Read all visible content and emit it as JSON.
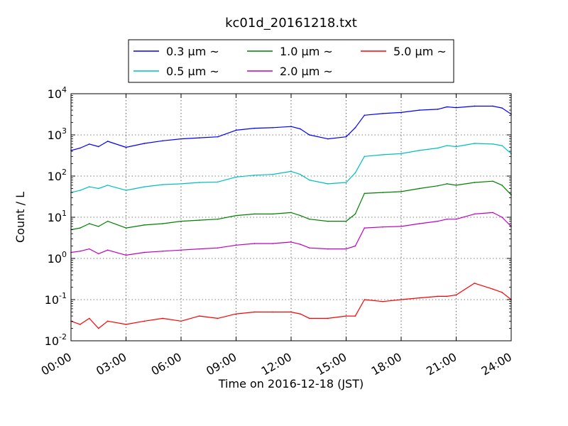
{
  "chart_data": {
    "type": "line",
    "title": "kc01d_20161218.txt",
    "xlabel": "Time on 2016-12-18 (JST)",
    "ylabel": "Count / L",
    "yscale": "log",
    "ylim": [
      0.01,
      10000
    ],
    "xlim": [
      "00:00",
      "24:00"
    ],
    "x_ticks": [
      "00:00",
      "03:00",
      "06:00",
      "09:00",
      "12:00",
      "15:00",
      "18:00",
      "21:00",
      "24:00"
    ],
    "y_ticks": [
      {
        "base": "10",
        "exp": "-2"
      },
      {
        "base": "10",
        "exp": "-1"
      },
      {
        "base": "10",
        "exp": "0"
      },
      {
        "base": "10",
        "exp": "1"
      },
      {
        "base": "10",
        "exp": "2"
      },
      {
        "base": "10",
        "exp": "3"
      },
      {
        "base": "10",
        "exp": "4"
      }
    ],
    "grid": true,
    "legend_position": "top-center",
    "x_hours": [
      0.0,
      0.5,
      1.0,
      1.5,
      2.0,
      3.0,
      4.0,
      5.0,
      6.0,
      7.0,
      8.0,
      9.0,
      10.0,
      11.0,
      12.0,
      12.5,
      13.0,
      14.0,
      15.0,
      15.5,
      16.0,
      17.0,
      18.0,
      19.0,
      20.0,
      20.5,
      21.0,
      22.0,
      23.0,
      23.5,
      24.0
    ],
    "series": [
      {
        "name": "0.3 μm ~",
        "color": "#0000ff",
        "values": [
          420,
          480,
          600,
          520,
          700,
          500,
          620,
          720,
          800,
          850,
          900,
          1300,
          1450,
          1500,
          1600,
          1400,
          1000,
          800,
          900,
          1500,
          3000,
          3300,
          3500,
          4000,
          4200,
          4800,
          4600,
          5000,
          5000,
          4500,
          3200
        ]
      },
      {
        "name": "0.5 μm ~",
        "color": "#00bfbf",
        "values": [
          40,
          45,
          55,
          50,
          60,
          45,
          55,
          62,
          65,
          70,
          72,
          95,
          105,
          110,
          130,
          110,
          80,
          65,
          70,
          120,
          300,
          330,
          350,
          420,
          480,
          550,
          520,
          620,
          600,
          550,
          350
        ]
      },
      {
        "name": "1.0 μm ~",
        "color": "#008000",
        "values": [
          5.0,
          5.5,
          7.0,
          6.0,
          8.0,
          5.5,
          6.5,
          7.0,
          8.0,
          8.5,
          9.0,
          11,
          12,
          12,
          13,
          11,
          9,
          8,
          8,
          12,
          38,
          40,
          42,
          50,
          58,
          65,
          60,
          70,
          75,
          60,
          35
        ]
      },
      {
        "name": "2.0 μm ~",
        "color": "#bf00bf",
        "values": [
          1.4,
          1.5,
          1.7,
          1.3,
          1.6,
          1.2,
          1.4,
          1.5,
          1.6,
          1.7,
          1.8,
          2.1,
          2.3,
          2.3,
          2.5,
          2.2,
          1.8,
          1.7,
          1.7,
          2.0,
          5.5,
          5.8,
          6.0,
          7.0,
          8.0,
          9.0,
          9.0,
          12,
          13,
          10,
          6.0
        ]
      },
      {
        "name": "5.0 μm ~",
        "color": "#ff0000",
        "values": [
          0.03,
          0.025,
          0.035,
          0.02,
          0.03,
          0.025,
          0.03,
          0.035,
          0.03,
          0.04,
          0.035,
          0.045,
          0.05,
          0.05,
          0.05,
          0.045,
          0.035,
          0.035,
          0.04,
          0.04,
          0.1,
          0.09,
          0.1,
          0.11,
          0.12,
          0.12,
          0.13,
          0.25,
          0.18,
          0.15,
          0.1
        ]
      }
    ]
  }
}
